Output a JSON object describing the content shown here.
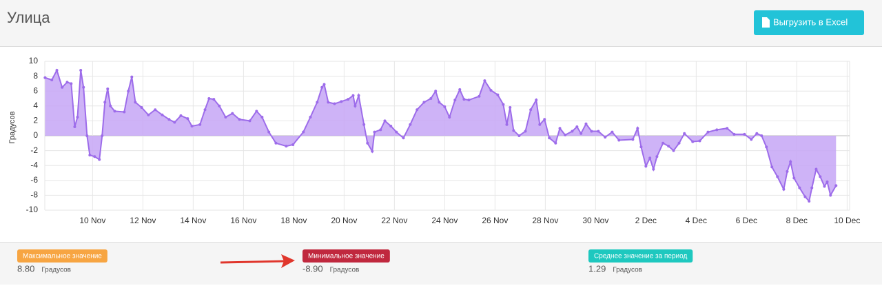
{
  "header": {
    "title": "Улица",
    "button": "Выгрузить в Excel"
  },
  "chart_data": {
    "type": "area",
    "y_label": "Градусов",
    "color": "#9d6cea",
    "fill": "#c5a6f6",
    "grid": true,
    "x": [
      8.11,
      8.38,
      8.58,
      8.79,
      8.99,
      9.15,
      9.29,
      9.4,
      9.53,
      9.64,
      9.78,
      9.89,
      10.08,
      10.27,
      10.38,
      10.49,
      10.6,
      10.71,
      10.88,
      11.26,
      11.42,
      11.56,
      11.7,
      11.95,
      12.22,
      12.49,
      12.77,
      13.04,
      13.26,
      13.51,
      13.78,
      13.95,
      14.27,
      14.47,
      14.63,
      14.82,
      15.04,
      15.29,
      15.56,
      15.84,
      16.25,
      16.52,
      16.74,
      17.01,
      17.29,
      17.7,
      17.97,
      18.38,
      18.66,
      18.93,
      19.12,
      19.21,
      19.37,
      19.62,
      19.89,
      20.16,
      20.36,
      20.44,
      20.58,
      20.79,
      20.93,
      21.12,
      21.21,
      21.45,
      21.62,
      21.86,
      22.08,
      22.36,
      22.63,
      22.9,
      23.18,
      23.45,
      23.64,
      23.78,
      24.0,
      24.19,
      24.41,
      24.6,
      24.77,
      24.96,
      25.37,
      25.59,
      25.84,
      26.11,
      26.33,
      26.47,
      26.6,
      26.74,
      26.96,
      27.21,
      27.42,
      27.64,
      27.78,
      27.97,
      28.16,
      28.41,
      28.58,
      28.79,
      29.07,
      29.26,
      29.42,
      29.62,
      29.84,
      30.11,
      30.38,
      30.66,
      30.93,
      31.48,
      31.67,
      31.81,
      32.0,
      32.16,
      32.3,
      32.44,
      32.68,
      32.9,
      33.1,
      33.32,
      33.53,
      33.86,
      34.14,
      34.47,
      34.82,
      35.23,
      35.51,
      35.92,
      36.19,
      36.41,
      36.6,
      36.79,
      37.01,
      37.23,
      37.48,
      37.62,
      37.75,
      37.89,
      38.11,
      38.33,
      38.49,
      38.6,
      38.77,
      38.93,
      39.1,
      39.21,
      39.34,
      39.56
    ],
    "values": [
      7.8,
      7.5,
      8.8,
      6.5,
      7.2,
      7.0,
      1.2,
      2.5,
      8.8,
      6.5,
      0,
      -2.6,
      -2.8,
      -3.2,
      0,
      4.5,
      6.3,
      4,
      3.3,
      3.2,
      6.0,
      7.9,
      4.5,
      3.8,
      2.8,
      3.5,
      2.8,
      2.2,
      1.8,
      2.7,
      2.3,
      1.3,
      1.5,
      3.5,
      5.0,
      4.9,
      4.0,
      2.5,
      3.0,
      2.2,
      2.0,
      3.3,
      2.5,
      0.5,
      -1.0,
      -1.4,
      -1.2,
      0.5,
      2.5,
      4.5,
      6.5,
      6.9,
      4.5,
      4.3,
      4.6,
      4.9,
      5.4,
      4.0,
      5.4,
      1.5,
      -1.0,
      -2.1,
      0.5,
      0.8,
      2.0,
      1.3,
      0.5,
      -0.3,
      1.5,
      3.5,
      4.5,
      5.0,
      6.0,
      4.5,
      3.9,
      2.5,
      4.8,
      6.2,
      4.9,
      4.8,
      5.3,
      7.4,
      6.1,
      5.5,
      4.2,
      1.5,
      3.8,
      0.7,
      0,
      0.6,
      3.5,
      4.8,
      1.5,
      2.2,
      -0.3,
      -1.0,
      1.0,
      0.1,
      0.6,
      1.2,
      0.3,
      1.6,
      0.6,
      0.6,
      -0.2,
      0.5,
      -0.6,
      -0.5,
      1.0,
      -1.5,
      -4.1,
      -3.0,
      -4.5,
      -2.8,
      -1.0,
      -1.4,
      -2.0,
      -1.0,
      0.3,
      -0.8,
      -0.7,
      0.5,
      0.8,
      1.0,
      0.2,
      0.2,
      -0.5,
      0.3,
      0,
      -1.5,
      -4.2,
      -5.5,
      -7.2,
      -4.8,
      -3.5,
      -5.7,
      -7.0,
      -8.2,
      -8.8,
      -7.0,
      -4.5,
      -5.5,
      -6.8,
      -6.2,
      -8.0,
      -6.7
    ],
    "xlim": [
      8.1,
      40.1
    ],
    "xticks": [
      {
        "value": 10,
        "label": "10 Nov"
      },
      {
        "value": 12,
        "label": "12 Nov"
      },
      {
        "value": 14,
        "label": "14 Nov"
      },
      {
        "value": 16,
        "label": "16 Nov"
      },
      {
        "value": 18,
        "label": "18 Nov"
      },
      {
        "value": 20,
        "label": "20 Nov"
      },
      {
        "value": 22,
        "label": "22 Nov"
      },
      {
        "value": 24,
        "label": "24 Nov"
      },
      {
        "value": 26,
        "label": "26 Nov"
      },
      {
        "value": 28,
        "label": "28 Nov"
      },
      {
        "value": 30,
        "label": "30 Nov"
      },
      {
        "value": 32,
        "label": "2 Dec"
      },
      {
        "value": 34,
        "label": "4 Dec"
      },
      {
        "value": 36,
        "label": "6 Dec"
      },
      {
        "value": 38,
        "label": "8 Dec"
      },
      {
        "value": 40,
        "label": "10 Dec"
      }
    ],
    "ylim": [
      -10,
      10
    ],
    "yticks": [
      -10,
      -8,
      -6,
      -4,
      -2,
      0,
      2,
      4,
      6,
      8,
      10
    ]
  },
  "stats": [
    {
      "label": "Максимальное значение",
      "value": "8.80",
      "unit": "Градусов",
      "color": "#f7a542"
    },
    {
      "label": "Минимальное значение",
      "value": "-8.90",
      "unit": "Градусов",
      "color": "#c0283e"
    },
    {
      "label": "Среднее значение за период",
      "value": "1.29",
      "unit": "Градусов",
      "color": "#1ec8bf"
    }
  ]
}
